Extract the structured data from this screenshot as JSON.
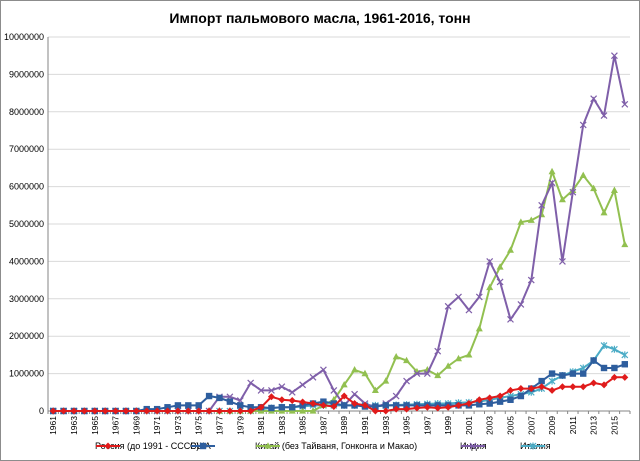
{
  "chart_data": {
    "type": "line",
    "title": "Импорт пальмового масла, 1961-2016, тонн",
    "xlabel": "",
    "ylabel": "",
    "ylim": [
      0,
      10000000
    ],
    "y_ticks": [
      "0",
      "1000000",
      "2000000",
      "3000000",
      "4000000",
      "5000000",
      "6000000",
      "7000000",
      "8000000",
      "9000000",
      "10000000"
    ],
    "x_tick_labels": [
      "1961",
      "1963",
      "1965",
      "1967",
      "1969",
      "1971",
      "1973",
      "1975",
      "1977",
      "1979",
      "1981",
      "1983",
      "1985",
      "1987",
      "1989",
      "1991",
      "1993",
      "1995",
      "1997",
      "1999",
      "2001",
      "2003",
      "2005",
      "2007",
      "2009",
      "2011",
      "2013",
      "2015"
    ],
    "grid": "horizontal",
    "legend_position": "bottom",
    "x": [
      1961,
      1962,
      1963,
      1964,
      1965,
      1966,
      1967,
      1968,
      1969,
      1970,
      1971,
      1972,
      1973,
      1974,
      1975,
      1976,
      1977,
      1978,
      1979,
      1980,
      1981,
      1982,
      1983,
      1984,
      1985,
      1986,
      1987,
      1988,
      1989,
      1990,
      1991,
      1992,
      1993,
      1994,
      1995,
      1996,
      1997,
      1998,
      1999,
      2000,
      2001,
      2002,
      2003,
      2004,
      2005,
      2006,
      2007,
      2008,
      2009,
      2010,
      2011,
      2012,
      2013,
      2014,
      2015,
      2016
    ],
    "series": [
      {
        "name": "Россия (до 1991 - СССР)",
        "color": "#e01b1b",
        "marker": "diamond",
        "values": [
          0,
          0,
          0,
          0,
          0,
          0,
          0,
          0,
          0,
          0,
          0,
          0,
          0,
          0,
          0,
          0,
          0,
          0,
          0,
          0,
          100000,
          380000,
          300000,
          280000,
          240000,
          200000,
          150000,
          120000,
          400000,
          200000,
          150000,
          0,
          0,
          50000,
          50000,
          80000,
          100000,
          80000,
          100000,
          150000,
          200000,
          300000,
          350000,
          400000,
          550000,
          600000,
          600000,
          650000,
          550000,
          650000,
          650000,
          650000,
          750000,
          700000,
          900000,
          900000
        ]
      },
      {
        "name": "США",
        "color": "#2e5e9e",
        "marker": "square",
        "values": [
          0,
          0,
          0,
          0,
          0,
          0,
          0,
          0,
          0,
          50000,
          50000,
          100000,
          150000,
          150000,
          150000,
          400000,
          350000,
          250000,
          150000,
          100000,
          100000,
          80000,
          100000,
          100000,
          150000,
          200000,
          250000,
          200000,
          150000,
          150000,
          120000,
          120000,
          150000,
          150000,
          150000,
          150000,
          150000,
          150000,
          150000,
          150000,
          150000,
          180000,
          200000,
          250000,
          300000,
          400000,
          600000,
          800000,
          1000000,
          950000,
          1000000,
          1000000,
          1350000,
          1150000,
          1150000,
          1250000
        ]
      },
      {
        "name": "Китай (без Тайваня, Гонконга и Макао)",
        "color": "#92c050",
        "marker": "triangle",
        "values": [
          0,
          0,
          0,
          0,
          0,
          0,
          0,
          0,
          0,
          0,
          0,
          0,
          0,
          0,
          0,
          0,
          0,
          0,
          0,
          0,
          0,
          0,
          0,
          0,
          0,
          0,
          150000,
          300000,
          700000,
          1100000,
          1000000,
          550000,
          800000,
          1450000,
          1350000,
          1050000,
          1100000,
          950000,
          1200000,
          1400000,
          1500000,
          2200000,
          3300000,
          3850000,
          4300000,
          5050000,
          5100000,
          5250000,
          6400000,
          5650000,
          5900000,
          6300000,
          5950000,
          5300000,
          5900000,
          4450000
        ]
      },
      {
        "name": "Индия",
        "color": "#7f5fa9",
        "marker": "x",
        "values": [
          0,
          0,
          0,
          0,
          0,
          0,
          0,
          0,
          0,
          0,
          0,
          0,
          0,
          0,
          0,
          0,
          380000,
          380000,
          280000,
          750000,
          550000,
          550000,
          650000,
          500000,
          700000,
          900000,
          1100000,
          550000,
          150000,
          450000,
          200000,
          100000,
          200000,
          400000,
          800000,
          1000000,
          1000000,
          1600000,
          2800000,
          3050000,
          2700000,
          3050000,
          4000000,
          3450000,
          2450000,
          2850000,
          3500000,
          5500000,
          6100000,
          4000000,
          5850000,
          7650000,
          8350000,
          7900000,
          9500000,
          8200000
        ]
      },
      {
        "name": "Италия",
        "color": "#4bacc6",
        "marker": "asterisk",
        "values": [
          0,
          0,
          0,
          0,
          0,
          0,
          0,
          0,
          0,
          0,
          0,
          0,
          0,
          0,
          0,
          0,
          0,
          0,
          0,
          0,
          50000,
          80000,
          100000,
          100000,
          120000,
          150000,
          150000,
          150000,
          150000,
          150000,
          150000,
          150000,
          150000,
          160000,
          170000,
          180000,
          190000,
          200000,
          200000,
          220000,
          230000,
          250000,
          300000,
          350000,
          400000,
          450000,
          500000,
          600000,
          800000,
          950000,
          1050000,
          1150000,
          1350000,
          1750000,
          1650000,
          1500000
        ]
      }
    ]
  }
}
